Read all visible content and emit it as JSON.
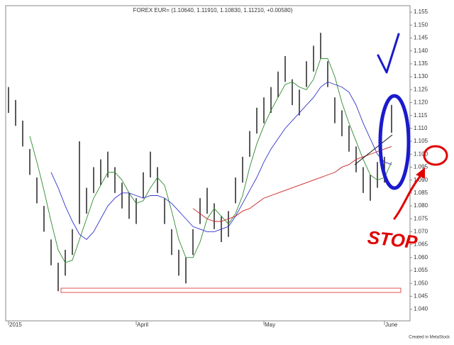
{
  "chart_data": {
    "type": "ohlc",
    "title": "FOREX EUR= (1.10640, 1.11910, 1.10830, 1.11210, +0.00580)",
    "footer": "Created in MetaStock",
    "annotation": "STOP",
    "bar_color": "#222222",
    "categories": [
      "2015",
      null,
      null,
      null,
      null,
      null,
      null,
      null,
      null,
      null,
      null,
      null,
      null,
      null,
      null,
      null,
      null,
      null,
      "April",
      null,
      null,
      null,
      null,
      null,
      null,
      null,
      null,
      null,
      null,
      null,
      null,
      null,
      null,
      null,
      null,
      null,
      "May",
      null,
      null,
      null,
      null,
      null,
      null,
      null,
      null,
      null,
      null,
      null,
      null,
      null,
      null,
      null,
      null,
      "June",
      null
    ],
    "high": [
      1.126,
      1.121,
      1.113,
      1.102,
      1.091,
      1.08,
      1.067,
      1.058,
      1.063,
      1.071,
      1.105,
      1.087,
      1.095,
      1.098,
      1.101,
      1.095,
      1.089,
      1.085,
      1.083,
      1.093,
      1.101,
      1.095,
      1.083,
      1.071,
      1.063,
      1.06,
      1.071,
      1.083,
      1.087,
      1.081,
      1.076,
      1.078,
      1.091,
      1.099,
      1.109,
      1.118,
      1.122,
      1.126,
      1.132,
      1.138,
      1.129,
      1.125,
      1.136,
      1.142,
      1.147,
      1.136,
      1.122,
      1.117,
      1.111,
      1.103,
      1.095,
      1.092,
      1.097,
      1.099,
      1.1191
    ],
    "low": [
      1.116,
      1.111,
      1.103,
      1.092,
      1.081,
      1.07,
      1.057,
      1.047,
      1.053,
      1.061,
      1.073,
      1.077,
      1.085,
      1.088,
      1.091,
      1.085,
      1.079,
      1.075,
      1.073,
      1.083,
      1.091,
      1.085,
      1.073,
      1.061,
      1.053,
      1.05,
      1.061,
      1.073,
      1.077,
      1.071,
      1.066,
      1.068,
      1.081,
      1.089,
      1.099,
      1.108,
      1.112,
      1.116,
      1.122,
      1.128,
      1.119,
      1.115,
      1.126,
      1.132,
      1.137,
      1.126,
      1.112,
      1.107,
      1.101,
      1.093,
      1.085,
      1.082,
      1.087,
      1.089,
      1.1083
    ],
    "series": [
      {
        "color": "#2e8b2e",
        "values": [
          null,
          null,
          null,
          1.107,
          1.097,
          1.086,
          1.074,
          1.063,
          1.058,
          1.059,
          1.067,
          1.075,
          1.083,
          1.088,
          1.093,
          1.093,
          1.09,
          1.085,
          1.081,
          1.082,
          1.087,
          1.091,
          1.088,
          1.078,
          1.067,
          1.06,
          1.06,
          1.066,
          1.075,
          1.079,
          1.076,
          1.073,
          1.077,
          1.084,
          1.095,
          1.104,
          1.111,
          1.117,
          1.122,
          1.127,
          1.128,
          1.126,
          1.125,
          1.129,
          1.137,
          1.137,
          1.13,
          1.12,
          1.112,
          1.105,
          1.098,
          1.092,
          1.09,
          1.091,
          1.097
        ]
      },
      {
        "color": "#3333cc",
        "values": [
          null,
          null,
          null,
          null,
          null,
          null,
          1.093,
          1.087,
          1.08,
          1.074,
          1.069,
          1.067,
          1.07,
          1.075,
          1.08,
          1.083,
          1.085,
          1.085,
          1.084,
          1.083,
          1.084,
          1.084,
          1.083,
          1.081,
          1.078,
          1.075,
          1.072,
          1.071,
          1.07,
          1.07,
          1.071,
          1.072,
          1.076,
          1.081,
          1.086,
          1.091,
          1.097,
          1.102,
          1.106,
          1.11,
          1.113,
          1.116,
          1.119,
          1.122,
          1.126,
          1.128,
          1.127,
          1.126,
          1.124,
          1.119,
          1.112,
          1.106,
          1.1,
          1.097,
          1.096
        ]
      },
      {
        "color": "#cc2222",
        "values": [
          null,
          null,
          null,
          null,
          null,
          null,
          null,
          null,
          null,
          null,
          null,
          null,
          null,
          null,
          null,
          null,
          null,
          null,
          null,
          null,
          null,
          null,
          null,
          null,
          null,
          null,
          1.079,
          1.077,
          1.075,
          1.074,
          1.074,
          1.075,
          1.076,
          1.078,
          1.079,
          1.081,
          1.083,
          1.084,
          1.085,
          1.086,
          1.087,
          1.088,
          1.089,
          1.09,
          1.091,
          1.092,
          1.093,
          1.095,
          1.096,
          1.098,
          1.099,
          1.1,
          1.101,
          1.102,
          1.103
        ]
      }
    ],
    "ylim": [
      1.0355,
      1.1575
    ],
    "yticks": [
      {
        "value": 1.04,
        "label": "1.040"
      },
      {
        "value": 1.045,
        "label": "1.045"
      },
      {
        "value": 1.05,
        "label": "1.050"
      },
      {
        "value": 1.055,
        "label": "1.055"
      },
      {
        "value": 1.06,
        "label": "1.060"
      },
      {
        "value": 1.065,
        "label": "1.065"
      },
      {
        "value": 1.07,
        "label": "1.070"
      },
      {
        "value": 1.075,
        "label": "1.075"
      },
      {
        "value": 1.08,
        "label": "1.080"
      },
      {
        "value": 1.085,
        "label": "1.085"
      },
      {
        "value": 1.09,
        "label": "1.090"
      },
      {
        "value": 1.095,
        "label": "1.095"
      },
      {
        "value": 1.1,
        "label": "1.100"
      },
      {
        "value": 1.105,
        "label": "1.105"
      },
      {
        "value": 1.11,
        "label": "1.110"
      },
      {
        "value": 1.115,
        "label": "1.115"
      },
      {
        "value": 1.12,
        "label": "1.120"
      },
      {
        "value": 1.125,
        "label": "1.125"
      },
      {
        "value": 1.13,
        "label": "1.130"
      },
      {
        "value": 1.135,
        "label": "1.135"
      },
      {
        "value": 1.14,
        "label": "1.140"
      },
      {
        "value": 1.145,
        "label": "1.145"
      },
      {
        "value": 1.15,
        "label": "1.150"
      },
      {
        "value": 1.155,
        "label": "1.155"
      }
    ]
  }
}
